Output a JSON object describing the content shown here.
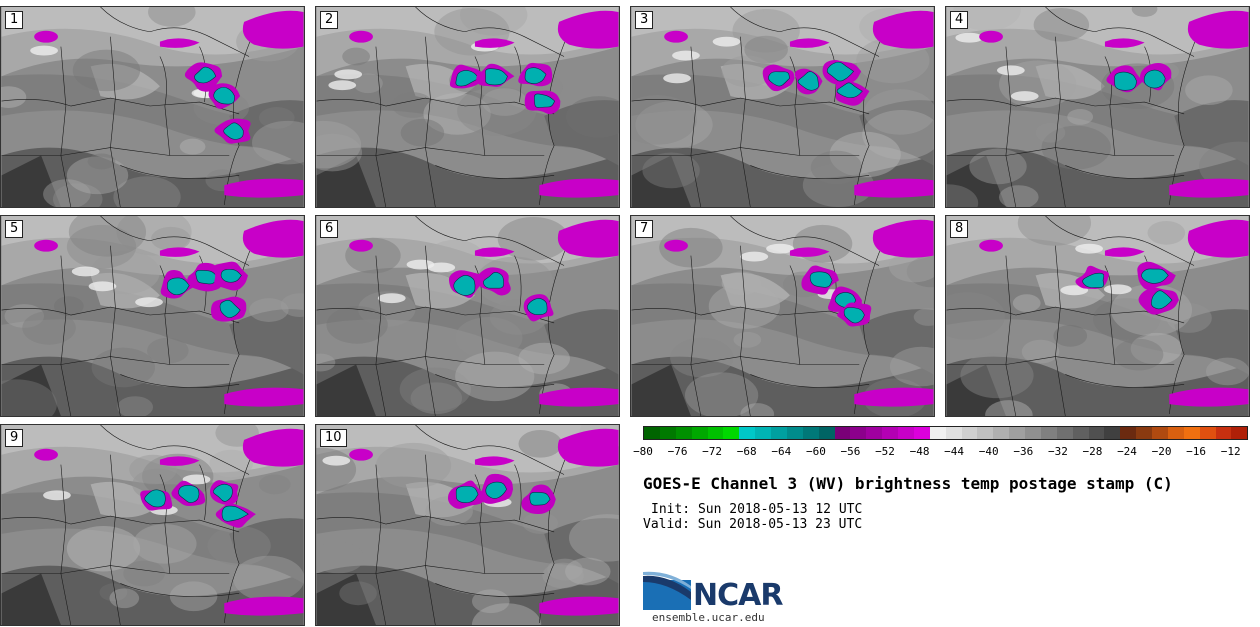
{
  "figure": {
    "title": "GOES-E Channel 3 (WV) brightness temp postage stamp (C)",
    "init": "Init: Sun 2018-05-13 12 UTC",
    "valid": "Valid: Sun 2018-05-13 23 UTC",
    "logo_text": "NCAR",
    "site": "ensemble.ucar.edu"
  },
  "panels": [
    {
      "label": "1"
    },
    {
      "label": "2"
    },
    {
      "label": "3"
    },
    {
      "label": "4"
    },
    {
      "label": "5"
    },
    {
      "label": "6"
    },
    {
      "label": "7"
    },
    {
      "label": "8"
    },
    {
      "label": "9"
    },
    {
      "label": "10"
    }
  ],
  "colorbar": {
    "ticks": [
      "−80",
      "−76",
      "−72",
      "−68",
      "−64",
      "−60",
      "−56",
      "−52",
      "−48",
      "−44",
      "−40",
      "−36",
      "−32",
      "−28",
      "−24",
      "−20",
      "−16",
      "−12"
    ],
    "min": -80,
    "max": -10,
    "colors": [
      "#006400",
      "#007a00",
      "#009000",
      "#00a800",
      "#00c000",
      "#00d800",
      "#00c8c8",
      "#00b4b4",
      "#00a0a0",
      "#008c8c",
      "#007878",
      "#006464",
      "#7a0078",
      "#8c008c",
      "#a000a0",
      "#b400b4",
      "#c800c8",
      "#dc00dc",
      "#f0f0f0",
      "#e0e0e0",
      "#d0d0d0",
      "#c0c0c0",
      "#b0b0b0",
      "#a0a0a0",
      "#909090",
      "#808080",
      "#707070",
      "#606060",
      "#505050",
      "#404040",
      "#6b2a10",
      "#8a3a10",
      "#b04a10",
      "#d86010",
      "#f07010",
      "#e05010",
      "#c83010",
      "#b02008"
    ]
  }
}
